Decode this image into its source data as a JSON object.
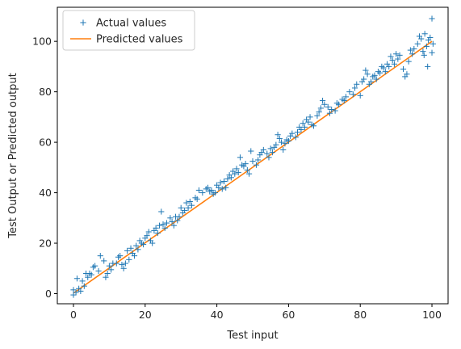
{
  "chart_data": {
    "type": "scatter",
    "title": "",
    "xlabel": "Test input",
    "ylabel": "Test Output or Predicted output",
    "xlim": [
      -4.5,
      104.5
    ],
    "ylim": [
      -4,
      113.5
    ],
    "xticks": [
      0,
      20,
      40,
      60,
      80,
      100
    ],
    "yticks": [
      0,
      20,
      40,
      60,
      80,
      100
    ],
    "grid": false,
    "legend_position": "top-left",
    "series": [
      {
        "name": "Actual values",
        "kind": "scatter",
        "marker": "+",
        "color": "#1f77b4",
        "points": [
          [
            0,
            -0.5
          ],
          [
            0,
            1.5
          ],
          [
            0.7,
            0.5
          ],
          [
            1,
            6
          ],
          [
            1.5,
            2
          ],
          [
            2,
            1
          ],
          [
            2.5,
            5
          ],
          [
            3,
            3
          ],
          [
            3.5,
            8
          ],
          [
            4,
            6.5
          ],
          [
            4.5,
            8
          ],
          [
            5,
            7.5
          ],
          [
            5.5,
            10.5
          ],
          [
            6,
            11
          ],
          [
            7,
            9
          ],
          [
            7.5,
            15
          ],
          [
            8.5,
            13
          ],
          [
            9,
            6.5
          ],
          [
            9.5,
            8
          ],
          [
            10,
            11
          ],
          [
            10.5,
            9.5
          ],
          [
            11,
            12
          ],
          [
            12,
            12
          ],
          [
            12.5,
            14.5
          ],
          [
            13,
            15
          ],
          [
            13.5,
            11.5
          ],
          [
            14,
            10
          ],
          [
            14.5,
            12
          ],
          [
            15,
            17
          ],
          [
            15.5,
            13.5
          ],
          [
            16,
            18
          ],
          [
            16.5,
            16
          ],
          [
            17,
            15
          ],
          [
            17.5,
            19
          ],
          [
            18,
            17.5
          ],
          [
            18.5,
            21
          ],
          [
            19,
            20
          ],
          [
            19.5,
            19.5
          ],
          [
            20,
            22
          ],
          [
            20.5,
            23
          ],
          [
            21,
            24.5
          ],
          [
            21.5,
            21
          ],
          [
            22,
            20
          ],
          [
            22.5,
            25
          ],
          [
            23,
            26
          ],
          [
            23.5,
            24
          ],
          [
            24,
            27
          ],
          [
            24.5,
            32.5
          ],
          [
            25,
            27.5
          ],
          [
            25.5,
            26
          ],
          [
            26,
            28
          ],
          [
            27,
            30
          ],
          [
            27.5,
            28.5
          ],
          [
            28,
            27
          ],
          [
            28.5,
            30.5
          ],
          [
            29,
            29
          ],
          [
            29.5,
            30.5
          ],
          [
            30,
            34
          ],
          [
            30.5,
            32
          ],
          [
            31,
            33
          ],
          [
            31.5,
            36
          ],
          [
            32,
            34
          ],
          [
            32.5,
            36.5
          ],
          [
            33,
            35
          ],
          [
            34,
            38
          ],
          [
            34.5,
            37.5
          ],
          [
            35,
            41
          ],
          [
            36,
            40
          ],
          [
            37,
            41.5
          ],
          [
            37.5,
            42
          ],
          [
            38,
            40.5
          ],
          [
            38.5,
            41
          ],
          [
            39,
            39.5
          ],
          [
            39.5,
            40
          ],
          [
            40,
            43
          ],
          [
            40.5,
            42
          ],
          [
            41,
            44
          ],
          [
            41.5,
            41.5
          ],
          [
            42,
            44.5
          ],
          [
            42.5,
            42
          ],
          [
            43,
            45.5
          ],
          [
            43.5,
            47
          ],
          [
            44,
            46
          ],
          [
            44.5,
            48.5
          ],
          [
            45,
            47.5
          ],
          [
            45.5,
            49.5
          ],
          [
            46,
            48
          ],
          [
            46.5,
            54
          ],
          [
            47,
            51
          ],
          [
            47.5,
            50.5
          ],
          [
            48,
            51.5
          ],
          [
            48.5,
            49
          ],
          [
            49,
            47.5
          ],
          [
            49.5,
            56.5
          ],
          [
            50,
            52.5
          ],
          [
            51,
            51
          ],
          [
            51.5,
            53
          ],
          [
            52,
            55
          ],
          [
            52.5,
            56
          ],
          [
            53,
            57
          ],
          [
            54,
            55.5
          ],
          [
            54.5,
            54
          ],
          [
            55,
            57.5
          ],
          [
            55.5,
            56
          ],
          [
            56,
            58
          ],
          [
            56.5,
            59
          ],
          [
            57,
            63
          ],
          [
            57.5,
            61.5
          ],
          [
            58,
            60
          ],
          [
            58.5,
            57
          ],
          [
            59,
            59.5
          ],
          [
            59.5,
            61
          ],
          [
            60,
            60.5
          ],
          [
            60.5,
            62.5
          ],
          [
            61,
            63.5
          ],
          [
            62,
            62
          ],
          [
            62.5,
            64
          ],
          [
            63,
            66
          ],
          [
            63.5,
            65
          ],
          [
            64,
            67.5
          ],
          [
            64.5,
            66
          ],
          [
            65,
            69
          ],
          [
            65.5,
            68
          ],
          [
            66,
            70
          ],
          [
            66.5,
            67
          ],
          [
            67,
            66.5
          ],
          [
            68,
            70.5
          ],
          [
            68.5,
            72
          ],
          [
            69,
            73.5
          ],
          [
            69.5,
            76.5
          ],
          [
            70,
            75
          ],
          [
            71,
            74
          ],
          [
            71.5,
            71.5
          ],
          [
            72,
            73
          ],
          [
            73,
            72.5
          ],
          [
            73.5,
            75.5
          ],
          [
            74,
            75
          ],
          [
            75,
            77
          ],
          [
            75.5,
            76.5
          ],
          [
            76,
            78
          ],
          [
            77,
            80
          ],
          [
            78,
            79
          ],
          [
            78.5,
            81.5
          ],
          [
            79,
            83
          ],
          [
            80,
            78.5
          ],
          [
            80.5,
            84
          ],
          [
            81,
            85
          ],
          [
            81.5,
            88.5
          ],
          [
            82,
            87
          ],
          [
            82.5,
            83
          ],
          [
            83,
            84
          ],
          [
            83.5,
            86
          ],
          [
            84,
            86.5
          ],
          [
            84.5,
            85
          ],
          [
            85,
            88
          ],
          [
            85.5,
            87.5
          ],
          [
            86,
            90
          ],
          [
            86.5,
            89.5
          ],
          [
            87,
            88
          ],
          [
            87.5,
            91
          ],
          [
            88,
            90
          ],
          [
            88.5,
            94
          ],
          [
            89,
            92.5
          ],
          [
            89.5,
            91
          ],
          [
            90,
            95
          ],
          [
            90.5,
            93
          ],
          [
            91,
            94.5
          ],
          [
            92,
            89
          ],
          [
            92.5,
            86
          ],
          [
            93,
            87
          ],
          [
            93.5,
            92
          ],
          [
            94,
            96.5
          ],
          [
            94.5,
            95
          ],
          [
            95,
            97
          ],
          [
            96,
            99
          ],
          [
            96.5,
            102
          ],
          [
            97,
            101
          ],
          [
            97.5,
            96
          ],
          [
            97.8,
            94.5
          ],
          [
            98,
            103
          ],
          [
            98.5,
            98
          ],
          [
            98.8,
            90
          ],
          [
            99,
            100.5
          ],
          [
            99.5,
            101.5
          ],
          [
            100,
            109
          ],
          [
            100,
            95.5
          ],
          [
            100.3,
            99
          ]
        ]
      },
      {
        "name": "Predicted values",
        "kind": "line",
        "color": "#ff7f0e",
        "x": [
          0,
          100
        ],
        "y": [
          0.2,
          100
        ]
      }
    ]
  }
}
